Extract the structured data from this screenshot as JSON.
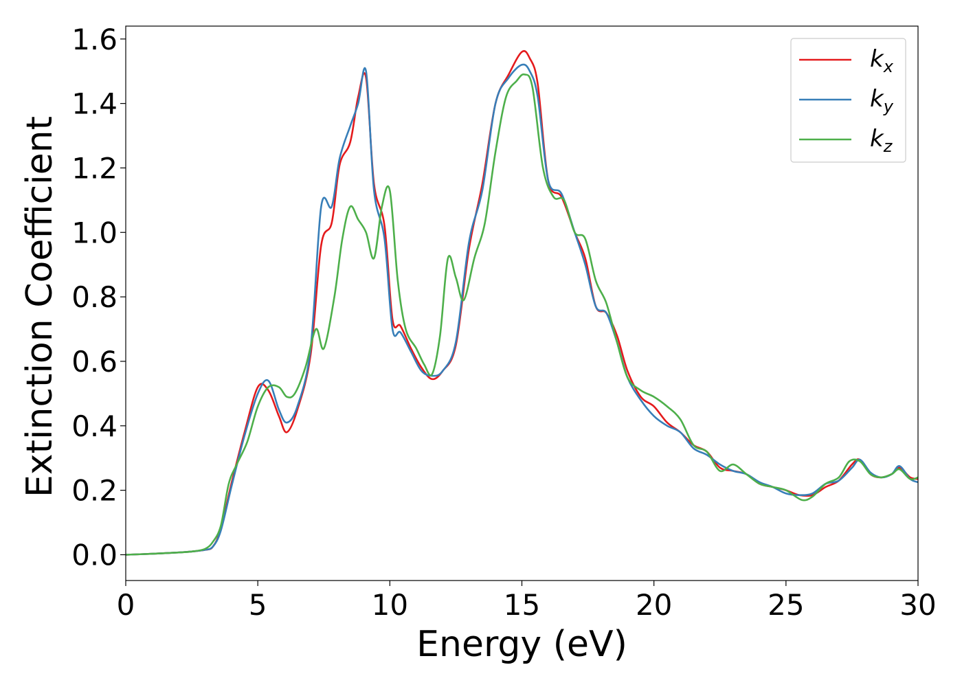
{
  "chart_data": {
    "type": "line",
    "xlabel": "Energy (eV)",
    "ylabel": "Extinction Coefficient",
    "xlim": [
      0,
      30
    ],
    "ylim": [
      -0.08,
      1.64
    ],
    "x_ticks": [
      0,
      5,
      10,
      15,
      20,
      25,
      30
    ],
    "y_ticks": [
      0.0,
      0.2,
      0.4,
      0.6,
      0.8,
      1.0,
      1.2,
      1.4,
      1.6
    ],
    "x_tick_labels": [
      "0",
      "5",
      "10",
      "15",
      "20",
      "25",
      "30"
    ],
    "y_tick_labels": [
      "0.0",
      "0.2",
      "0.4",
      "0.6",
      "0.8",
      "1.0",
      "1.2",
      "1.4",
      "1.6"
    ],
    "grid": false,
    "legend_position": "top-right",
    "series": [
      {
        "name": "k",
        "subscript": "x",
        "color": "#e41a1c",
        "x": [
          0,
          1,
          2,
          2.5,
          3,
          3.3,
          3.6,
          4,
          4.5,
          5,
          5.4,
          5.8,
          6.1,
          6.5,
          7,
          7.4,
          7.8,
          8.1,
          8.5,
          8.8,
          9.1,
          9.4,
          9.8,
          10.1,
          10.4,
          10.8,
          11.2,
          11.6,
          12,
          12.5,
          13,
          13.5,
          14,
          14.5,
          15,
          15.3,
          15.6,
          16,
          16.5,
          17,
          17.4,
          17.8,
          18.2,
          18.6,
          19,
          19.5,
          20,
          20.5,
          21,
          21.5,
          22,
          22.5,
          23,
          23.5,
          24,
          24.5,
          25,
          25.5,
          26,
          26.5,
          27,
          27.5,
          27.8,
          28.2,
          28.6,
          29,
          29.3,
          29.7,
          30
        ],
        "y": [
          0,
          0.003,
          0.007,
          0.01,
          0.015,
          0.025,
          0.08,
          0.22,
          0.38,
          0.52,
          0.51,
          0.43,
          0.38,
          0.45,
          0.62,
          0.96,
          1.03,
          1.21,
          1.28,
          1.42,
          1.48,
          1.15,
          1.02,
          0.73,
          0.71,
          0.64,
          0.58,
          0.545,
          0.57,
          0.65,
          0.95,
          1.15,
          1.4,
          1.49,
          1.56,
          1.54,
          1.46,
          1.16,
          1.11,
          1.0,
          0.92,
          0.77,
          0.75,
          0.68,
          0.57,
          0.49,
          0.46,
          0.41,
          0.38,
          0.34,
          0.32,
          0.27,
          0.26,
          0.25,
          0.22,
          0.21,
          0.2,
          0.185,
          0.185,
          0.21,
          0.23,
          0.28,
          0.295,
          0.25,
          0.24,
          0.25,
          0.27,
          0.24,
          0.235
        ]
      },
      {
        "name": "k",
        "subscript": "y",
        "color": "#377eb8",
        "x": [
          0,
          1,
          2,
          2.5,
          3,
          3.3,
          3.6,
          4,
          4.5,
          5,
          5.4,
          5.8,
          6.1,
          6.5,
          7,
          7.4,
          7.8,
          8.1,
          8.5,
          8.8,
          9.1,
          9.4,
          9.8,
          10.1,
          10.4,
          10.8,
          11.2,
          11.6,
          12,
          12.5,
          13,
          13.5,
          14,
          14.5,
          15,
          15.3,
          15.6,
          16,
          16.5,
          17,
          17.4,
          17.8,
          18.2,
          18.6,
          19,
          19.5,
          20,
          20.5,
          21,
          21.5,
          22,
          22.5,
          23,
          23.5,
          24,
          24.5,
          25,
          25.5,
          26,
          26.5,
          27,
          27.5,
          27.8,
          28.2,
          28.6,
          29,
          29.3,
          29.7,
          30
        ],
        "y": [
          0,
          0.003,
          0.007,
          0.01,
          0.015,
          0.025,
          0.075,
          0.21,
          0.37,
          0.5,
          0.54,
          0.45,
          0.41,
          0.46,
          0.64,
          1.08,
          1.08,
          1.23,
          1.33,
          1.4,
          1.5,
          1.13,
          0.98,
          0.7,
          0.69,
          0.63,
          0.57,
          0.555,
          0.57,
          0.66,
          0.97,
          1.13,
          1.4,
          1.48,
          1.52,
          1.5,
          1.42,
          1.16,
          1.12,
          1.0,
          0.9,
          0.77,
          0.75,
          0.66,
          0.55,
          0.48,
          0.43,
          0.4,
          0.38,
          0.33,
          0.31,
          0.28,
          0.26,
          0.25,
          0.225,
          0.21,
          0.19,
          0.185,
          0.19,
          0.22,
          0.23,
          0.27,
          0.295,
          0.255,
          0.24,
          0.25,
          0.275,
          0.235,
          0.225
        ]
      },
      {
        "name": "k",
        "subscript": "z",
        "color": "#4daf4a",
        "x": [
          0,
          1,
          2,
          2.5,
          3,
          3.3,
          3.6,
          3.9,
          4.2,
          4.6,
          5,
          5.4,
          5.8,
          6.1,
          6.4,
          6.8,
          7.2,
          7.5,
          7.9,
          8.2,
          8.5,
          8.8,
          9.1,
          9.4,
          9.7,
          10,
          10.3,
          10.6,
          11,
          11.3,
          11.6,
          11.9,
          12.2,
          12.5,
          12.8,
          13.2,
          13.6,
          14,
          14.4,
          14.8,
          15.1,
          15.4,
          15.8,
          16.2,
          16.6,
          17,
          17.4,
          17.8,
          18.2,
          18.6,
          19,
          19.5,
          20,
          20.5,
          21,
          21.5,
          22,
          22.5,
          23,
          23.5,
          24,
          24.5,
          25,
          25.6,
          26,
          26.5,
          27,
          27.4,
          27.8,
          28.2,
          28.6,
          29,
          29.3,
          29.7,
          30
        ],
        "y": [
          0,
          0.003,
          0.007,
          0.01,
          0.018,
          0.04,
          0.09,
          0.22,
          0.28,
          0.35,
          0.46,
          0.52,
          0.52,
          0.49,
          0.5,
          0.58,
          0.7,
          0.64,
          0.8,
          0.98,
          1.08,
          1.04,
          1.0,
          0.92,
          1.08,
          1.13,
          0.85,
          0.7,
          0.64,
          0.59,
          0.56,
          0.68,
          0.92,
          0.86,
          0.79,
          0.92,
          1.03,
          1.25,
          1.42,
          1.47,
          1.49,
          1.45,
          1.2,
          1.11,
          1.1,
          1.0,
          0.98,
          0.85,
          0.78,
          0.66,
          0.55,
          0.51,
          0.49,
          0.46,
          0.42,
          0.34,
          0.32,
          0.26,
          0.28,
          0.25,
          0.22,
          0.21,
          0.2,
          0.17,
          0.18,
          0.22,
          0.24,
          0.29,
          0.29,
          0.25,
          0.24,
          0.25,
          0.265,
          0.235,
          0.24
        ]
      }
    ]
  }
}
